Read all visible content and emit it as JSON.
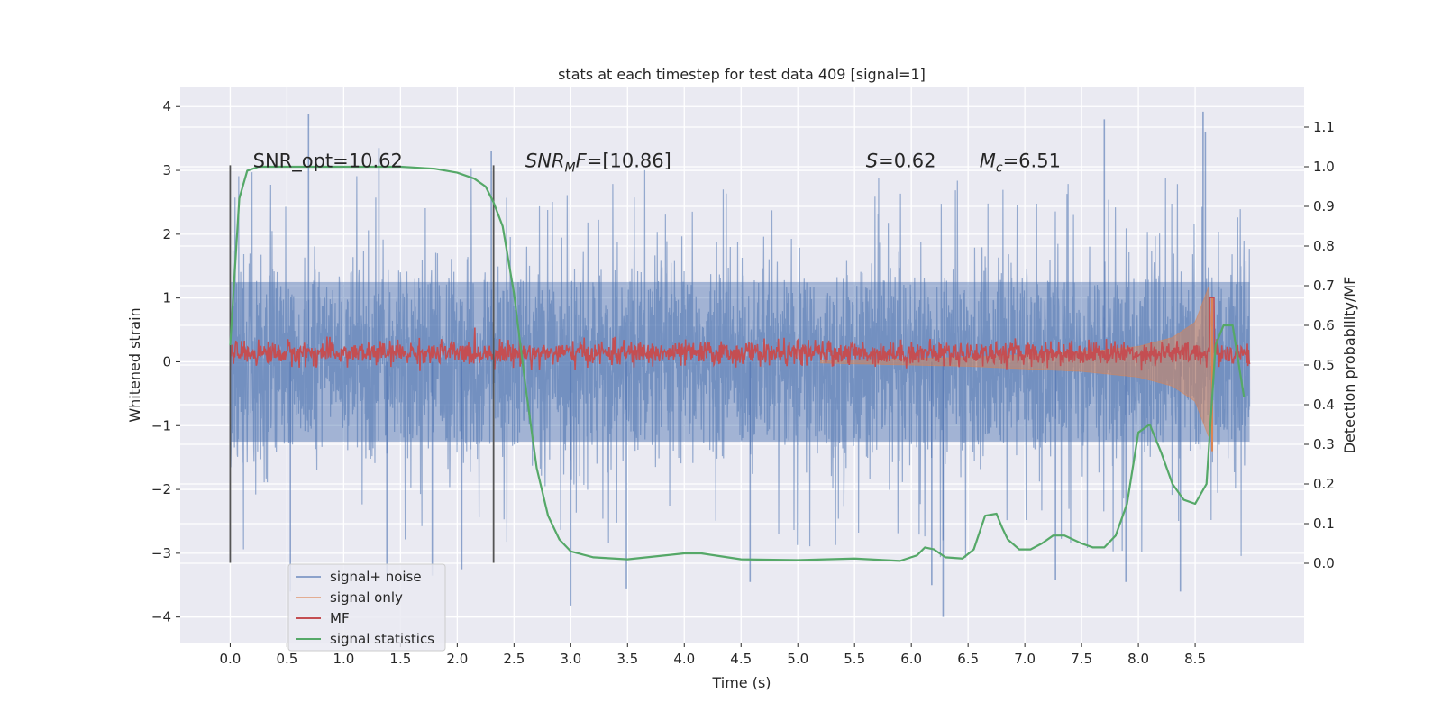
{
  "chart_data": {
    "type": "line",
    "title": "stats at each timestep for test data 409 [signal=1]",
    "xlabel": "Time (s)",
    "ylabel_left": "Whitened strain",
    "ylabel_right": "Detection probability/MF",
    "xlim": [
      -0.44,
      9.46
    ],
    "ylim_left": [
      -4.4,
      4.3
    ],
    "ylim_right": [
      -0.2,
      1.2
    ],
    "x_ticks": [
      0.0,
      0.5,
      1.0,
      1.5,
      2.0,
      2.5,
      3.0,
      3.5,
      4.0,
      4.5,
      5.0,
      5.5,
      6.0,
      6.5,
      7.0,
      7.5,
      8.0,
      8.5
    ],
    "x_tick_labels": [
      "0.0",
      "0.5",
      "1.0",
      "1.5",
      "2.0",
      "2.5",
      "3.0",
      "3.5",
      "4.0",
      "4.5",
      "5.0",
      "5.5",
      "6.0",
      "6.5",
      "7.0",
      "7.5",
      "8.0",
      "8.5"
    ],
    "y_ticks_left": [
      -4,
      -3,
      -2,
      -1,
      0,
      1,
      2,
      3,
      4
    ],
    "y_tick_labels_left": [
      "−4",
      "−3",
      "−2",
      "−1",
      "0",
      "1",
      "2",
      "3",
      "4"
    ],
    "y_ticks_right": [
      0.0,
      0.1,
      0.2,
      0.3,
      0.4,
      0.5,
      0.6,
      0.7,
      0.8,
      0.9,
      1.0,
      1.1
    ],
    "y_tick_labels_right": [
      "0.0",
      "0.1",
      "0.2",
      "0.3",
      "0.4",
      "0.5",
      "0.6",
      "0.7",
      "0.8",
      "0.9",
      "1.0",
      "1.1"
    ],
    "grid": true,
    "legend_position": "lower-left",
    "annotations": [
      {
        "text": "SNR_opt=10.62",
        "x": 0.2,
        "y": 3.05
      },
      {
        "text": "SNR_MF=[10.86]",
        "x": 2.6,
        "y": 3.05
      },
      {
        "text": "S=0.62",
        "x": 5.6,
        "y": 3.05
      },
      {
        "text": "M_c=6.51",
        "x": 6.6,
        "y": 3.05
      }
    ],
    "vertical_markers": [
      {
        "x": 0.0,
        "y_range": [
          -3.15,
          3.08
        ]
      },
      {
        "x": 2.32,
        "y_range": [
          -3.15,
          3.08
        ]
      }
    ],
    "series": [
      {
        "name": "signal+ noise",
        "axis": "left",
        "color": "#4c72b0",
        "kind": "noise",
        "x_range": [
          0.0,
          8.98
        ],
        "std": 0.75,
        "envelope": {
          "q_inner": 1.25,
          "q_outer_high": 2.5,
          "q_outer_low": -2.6
        },
        "extreme_spikes": [
          {
            "x": 0.69,
            "y": 3.88
          },
          {
            "x": 1.31,
            "y": 3.35
          },
          {
            "x": 2.3,
            "y": 3.3
          },
          {
            "x": 7.7,
            "y": 3.8
          },
          {
            "x": 8.57,
            "y": 3.92
          },
          {
            "x": 8.59,
            "y": 3.6
          },
          {
            "x": 6.28,
            "y": -4.0
          },
          {
            "x": 3.0,
            "y": -3.82
          },
          {
            "x": 3.49,
            "y": -3.55
          },
          {
            "x": 8.37,
            "y": -3.6
          },
          {
            "x": 7.89,
            "y": -3.45
          },
          {
            "x": 7.27,
            "y": -3.42
          },
          {
            "x": 0.53,
            "y": -3.6
          },
          {
            "x": 1.38,
            "y": -3.45
          },
          {
            "x": 4.58,
            "y": -3.45
          },
          {
            "x": 6.18,
            "y": -3.5
          },
          {
            "x": 1.78,
            "y": -3.35
          },
          {
            "x": 2.04,
            "y": -3.25
          }
        ]
      },
      {
        "name": "signal only",
        "axis": "left",
        "color": "#dd8452",
        "kind": "chirp",
        "x_range": [
          5.2,
          8.67
        ],
        "amplitude_points": [
          [
            5.2,
            0.02
          ],
          [
            6.5,
            0.07
          ],
          [
            7.5,
            0.15
          ],
          [
            8.0,
            0.24
          ],
          [
            8.3,
            0.38
          ],
          [
            8.5,
            0.62
          ],
          [
            8.62,
            1.18
          ],
          [
            8.65,
            0.4
          ],
          [
            8.67,
            0.0
          ]
        ]
      },
      {
        "name": "MF",
        "axis": "right",
        "color": "#c44e52",
        "kind": "noisy-baseline",
        "x_range": [
          0.0,
          8.98
        ],
        "baseline": 0.53,
        "jitter": 0.015,
        "peak": {
          "x": 8.65,
          "y": 0.67
        }
      },
      {
        "name": "signal statistics",
        "axis": "right",
        "color": "#55a868",
        "kind": "line",
        "x": [
          0.0,
          0.08,
          0.15,
          0.25,
          0.5,
          1.0,
          1.5,
          1.8,
          2.0,
          2.15,
          2.25,
          2.32,
          2.4,
          2.5,
          2.6,
          2.7,
          2.8,
          2.9,
          3.0,
          3.2,
          3.5,
          4.0,
          4.15,
          4.5,
          5.0,
          5.5,
          5.9,
          6.05,
          6.12,
          6.2,
          6.3,
          6.45,
          6.55,
          6.65,
          6.75,
          6.8,
          6.85,
          6.95,
          7.05,
          7.15,
          7.25,
          7.35,
          7.5,
          7.6,
          7.7,
          7.8,
          7.9,
          8.0,
          8.1,
          8.2,
          8.3,
          8.4,
          8.5,
          8.6,
          8.68,
          8.75,
          8.83,
          8.93
        ],
        "y": [
          0.55,
          0.92,
          0.99,
          1.0,
          1.0,
          1.0,
          1.0,
          0.995,
          0.985,
          0.97,
          0.95,
          0.91,
          0.85,
          0.68,
          0.45,
          0.24,
          0.12,
          0.06,
          0.03,
          0.015,
          0.01,
          0.025,
          0.025,
          0.01,
          0.008,
          0.012,
          0.006,
          0.02,
          0.04,
          0.035,
          0.015,
          0.012,
          0.035,
          0.12,
          0.125,
          0.09,
          0.06,
          0.035,
          0.035,
          0.05,
          0.07,
          0.07,
          0.05,
          0.04,
          0.04,
          0.07,
          0.15,
          0.33,
          0.35,
          0.28,
          0.2,
          0.16,
          0.15,
          0.2,
          0.55,
          0.6,
          0.6,
          0.42
        ]
      }
    ]
  }
}
